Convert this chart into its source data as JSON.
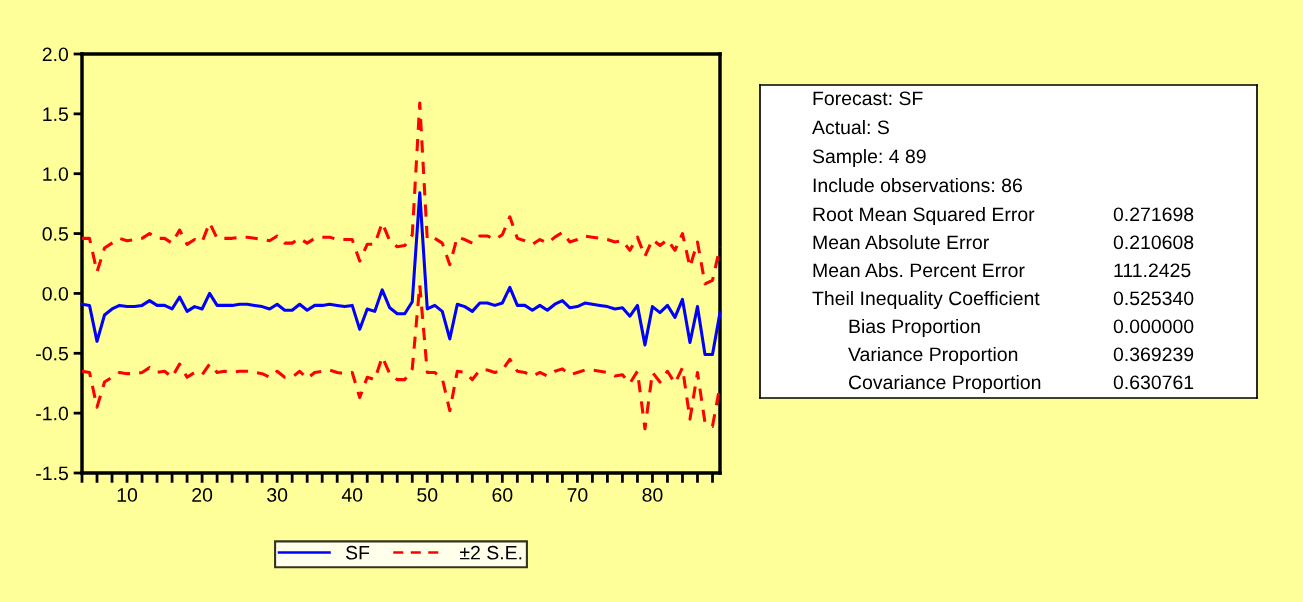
{
  "chart_data": [
    {
      "type": "line",
      "x": [
        4,
        5,
        6,
        7,
        8,
        9,
        10,
        11,
        12,
        13,
        14,
        15,
        16,
        17,
        18,
        19,
        20,
        21,
        22,
        23,
        24,
        25,
        26,
        27,
        28,
        29,
        30,
        31,
        32,
        33,
        34,
        35,
        36,
        37,
        38,
        39,
        40,
        41,
        42,
        43,
        44,
        45,
        46,
        47,
        48,
        49,
        50,
        51,
        52,
        53,
        54,
        55,
        56,
        57,
        58,
        59,
        60,
        61,
        62,
        63,
        64,
        65,
        66,
        67,
        68,
        69,
        70,
        71,
        72,
        73,
        74,
        75,
        76,
        77,
        78,
        79,
        80,
        81,
        82,
        83,
        84,
        85,
        86,
        87,
        88,
        89
      ],
      "series": [
        {
          "name": "SF",
          "color": "#0000ff",
          "line_style": "solid",
          "values": [
            -0.09,
            -0.1,
            -0.4,
            -0.18,
            -0.13,
            -0.1,
            -0.11,
            -0.11,
            -0.1,
            -0.06,
            -0.1,
            -0.1,
            -0.13,
            -0.03,
            -0.15,
            -0.11,
            -0.13,
            0.0,
            -0.1,
            -0.1,
            -0.1,
            -0.09,
            -0.09,
            -0.1,
            -0.11,
            -0.13,
            -0.09,
            -0.14,
            -0.14,
            -0.09,
            -0.14,
            -0.1,
            -0.1,
            -0.09,
            -0.1,
            -0.11,
            -0.1,
            -0.3,
            -0.13,
            -0.15,
            0.03,
            -0.12,
            -0.17,
            -0.17,
            -0.07,
            0.84,
            -0.13,
            -0.1,
            -0.15,
            -0.38,
            -0.09,
            -0.11,
            -0.15,
            -0.08,
            -0.08,
            -0.1,
            -0.08,
            0.05,
            -0.1,
            -0.1,
            -0.14,
            -0.1,
            -0.14,
            -0.09,
            -0.06,
            -0.12,
            -0.11,
            -0.08,
            -0.09,
            -0.1,
            -0.11,
            -0.13,
            -0.12,
            -0.19,
            -0.1,
            -0.43,
            -0.11,
            -0.16,
            -0.1,
            -0.2,
            -0.05,
            -0.41,
            -0.11,
            -0.51,
            -0.51,
            -0.16
          ]
        },
        {
          "name": "±2 S.E.",
          "color": "#ff0000",
          "line_style": "dashed",
          "values": [
            0.46,
            0.46,
            0.18,
            0.38,
            0.42,
            0.46,
            0.44,
            0.45,
            0.46,
            0.5,
            0.46,
            0.46,
            0.42,
            0.53,
            0.41,
            0.45,
            0.43,
            0.59,
            0.46,
            0.46,
            0.46,
            0.47,
            0.47,
            0.46,
            0.45,
            0.44,
            0.48,
            0.42,
            0.42,
            0.46,
            0.42,
            0.46,
            0.47,
            0.47,
            0.45,
            0.45,
            0.45,
            0.27,
            0.41,
            0.41,
            0.59,
            0.44,
            0.39,
            0.4,
            0.49,
            1.59,
            0.45,
            0.46,
            0.42,
            0.24,
            0.47,
            0.45,
            0.42,
            0.48,
            0.48,
            0.45,
            0.49,
            0.64,
            0.46,
            0.44,
            0.41,
            0.45,
            0.42,
            0.47,
            0.51,
            0.43,
            0.45,
            0.48,
            0.47,
            0.46,
            0.45,
            0.43,
            0.44,
            0.36,
            0.47,
            0.31,
            0.45,
            0.4,
            0.45,
            0.36,
            0.5,
            0.22,
            0.43,
            0.08,
            0.11,
            0.39
          ]
        },
        {
          "color": "#ff0000",
          "line_style": "dashed",
          "values": [
            -0.65,
            -0.66,
            -0.95,
            -0.74,
            -0.7,
            -0.66,
            -0.67,
            -0.67,
            -0.66,
            -0.62,
            -0.66,
            -0.65,
            -0.7,
            -0.59,
            -0.7,
            -0.66,
            -0.68,
            -0.59,
            -0.66,
            -0.65,
            -0.66,
            -0.65,
            -0.65,
            -0.66,
            -0.67,
            -0.7,
            -0.65,
            -0.7,
            -0.7,
            -0.65,
            -0.71,
            -0.66,
            -0.65,
            -0.64,
            -0.66,
            -0.67,
            -0.66,
            -0.87,
            -0.7,
            -0.72,
            -0.53,
            -0.67,
            -0.72,
            -0.72,
            -0.63,
            0.07,
            -0.66,
            -0.66,
            -0.71,
            -0.98,
            -0.65,
            -0.66,
            -0.72,
            -0.64,
            -0.64,
            -0.66,
            -0.64,
            -0.55,
            -0.65,
            -0.66,
            -0.69,
            -0.66,
            -0.69,
            -0.65,
            -0.63,
            -0.68,
            -0.66,
            -0.64,
            -0.64,
            -0.65,
            -0.66,
            -0.69,
            -0.68,
            -0.75,
            -0.65,
            -1.13,
            -0.66,
            -0.74,
            -0.65,
            -0.75,
            -0.62,
            -1.05,
            -0.66,
            -1.08,
            -1.11,
            -0.77
          ]
        }
      ],
      "xlim": [
        4,
        89
      ],
      "xticks": [
        {
          "value": 4,
          "label": null
        },
        {
          "value": 6,
          "label": null
        },
        {
          "value": 8,
          "label": null
        },
        10,
        {
          "value": 12,
          "label": null
        },
        {
          "value": 14,
          "label": null
        },
        {
          "value": 16,
          "label": null
        },
        {
          "value": 18,
          "label": null
        },
        20,
        {
          "value": 22,
          "label": null
        },
        {
          "value": 24,
          "label": null
        },
        {
          "value": 26,
          "label": null
        },
        {
          "value": 28,
          "label": null
        },
        30,
        {
          "value": 32,
          "label": null
        },
        {
          "value": 34,
          "label": null
        },
        {
          "value": 36,
          "label": null
        },
        {
          "value": 38,
          "label": null
        },
        40,
        {
          "value": 42,
          "label": null
        },
        {
          "value": 44,
          "label": null
        },
        {
          "value": 46,
          "label": null
        },
        {
          "value": 48,
          "label": null
        },
        50,
        {
          "value": 52,
          "label": null
        },
        {
          "value": 54,
          "label": null
        },
        {
          "value": 56,
          "label": null
        },
        {
          "value": 58,
          "label": null
        },
        60,
        {
          "value": 62,
          "label": null
        },
        {
          "value": 64,
          "label": null
        },
        {
          "value": 66,
          "label": null
        },
        {
          "value": 68,
          "label": null
        },
        70,
        {
          "value": 72,
          "label": null
        },
        {
          "value": 74,
          "label": null
        },
        {
          "value": 76,
          "label": null
        },
        {
          "value": 78,
          "label": null
        },
        80,
        {
          "value": 82,
          "label": null
        },
        {
          "value": 84,
          "label": null
        },
        {
          "value": 86,
          "label": null
        },
        {
          "value": 88,
          "label": null
        }
      ],
      "ylim": [
        -1.5,
        2.0
      ],
      "yticks": [
        {
          "value": -1.5,
          "label": "-1.5"
        },
        {
          "value": -1.0,
          "label": "-1.0"
        },
        {
          "value": -0.5,
          "label": "-0.5"
        },
        {
          "value": 0,
          "label": "0.0"
        },
        {
          "value": 0.5,
          "label": "0.5"
        },
        {
          "value": 1.0,
          "label": "1.0"
        },
        {
          "value": 1.5,
          "label": "1.5"
        },
        {
          "value": 2.0,
          "label": "2.0"
        }
      ],
      "grid": false,
      "legend": "bottom",
      "marker": "none"
    },
    {
      "type": "other",
      "annotations": [
        "Forecast: SF",
        "Actual: S",
        "Sample: 4 89",
        "Include observations: 86",
        "Root Mean Squared Error",
        "0.271698",
        "Mean Absolute Error",
        "0.210608",
        "Mean Abs. Percent Error",
        "111.2425",
        "Theil Inequality Coefficient",
        "0.525340",
        "Bias Proportion",
        "0.000000",
        "Variance Proportion",
        "0.369239",
        "Covariance Proportion",
        "0.630761"
      ]
    }
  ]
}
